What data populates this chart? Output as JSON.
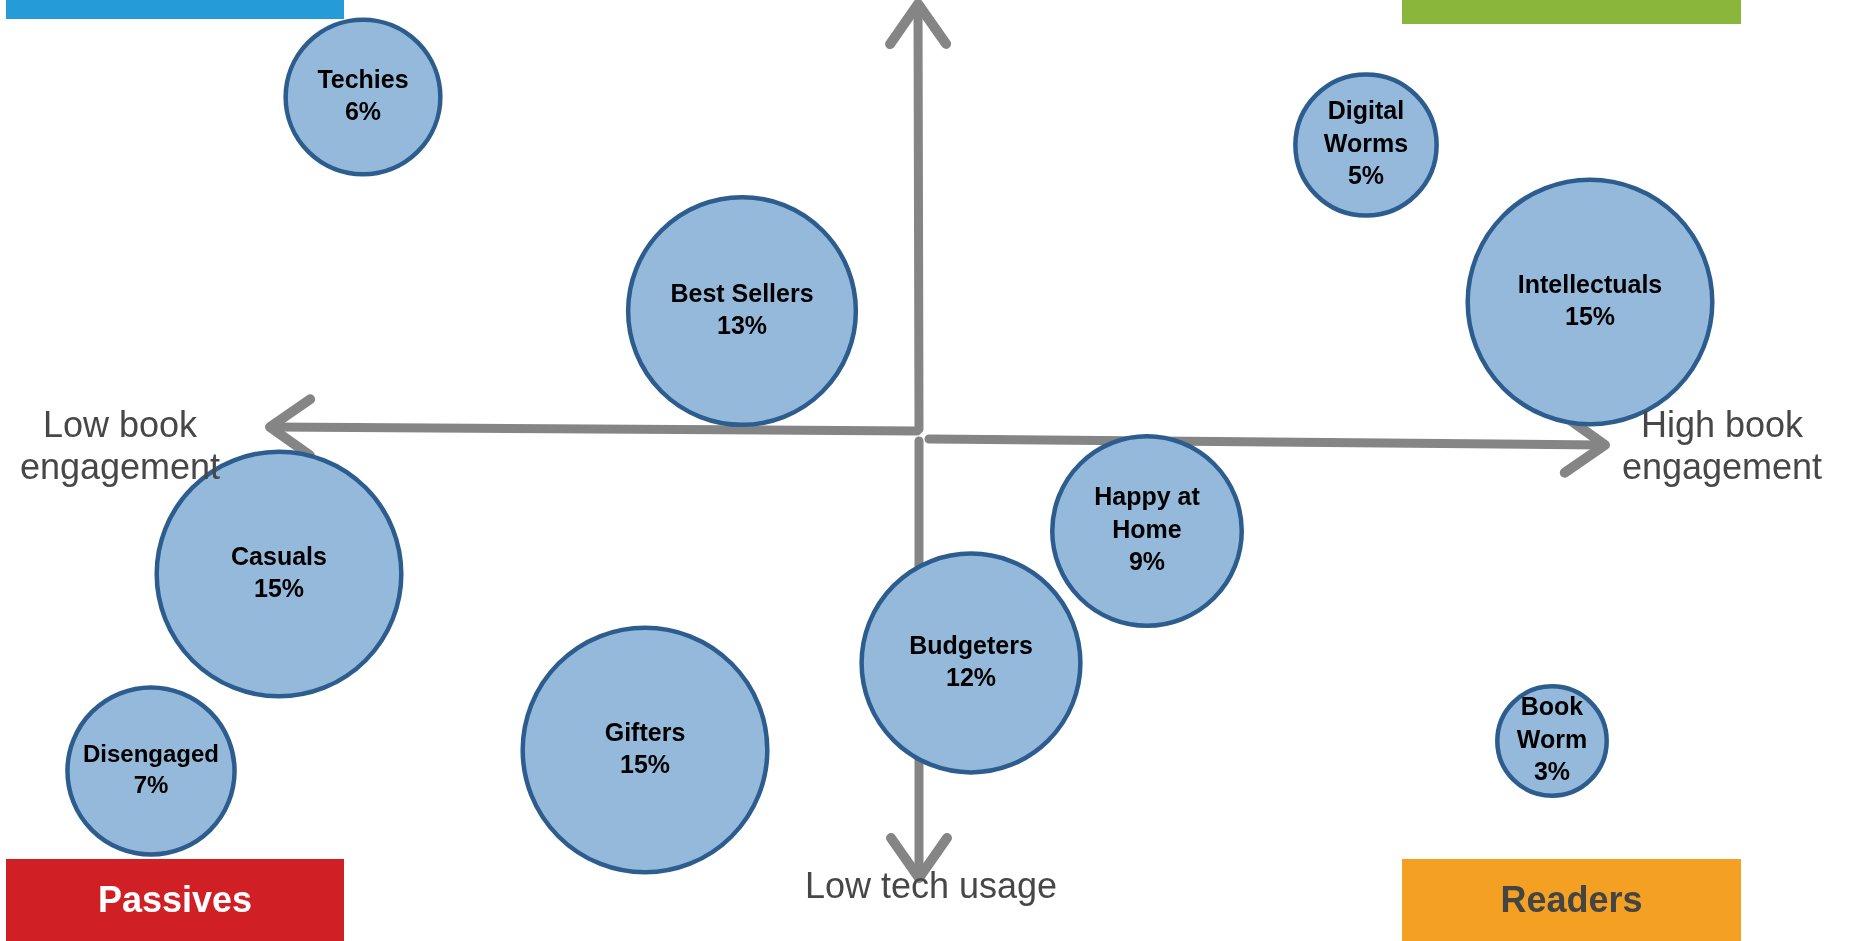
{
  "chart_data": {
    "type": "other",
    "color": "#94b9da",
    "categories": [
      "Techies",
      "Best Sellers",
      "Digital Worms",
      "Intellectuals",
      "Casuals",
      "Happy at Home",
      "Budgeters",
      "Disengaged",
      "Gifters",
      "Book Worm"
    ],
    "values": [
      6,
      13,
      5,
      15,
      15,
      9,
      12,
      7,
      15,
      3
    ],
    "value_labels": [
      "6%",
      "13%",
      "5%",
      "15%",
      "15%",
      "9%",
      "12%",
      "7%",
      "15%",
      "3%"
    ],
    "annotations": [
      "Low book engagement",
      "High book engagement",
      "Low tech usage",
      "Passives",
      "Readers"
    ]
  }
}
